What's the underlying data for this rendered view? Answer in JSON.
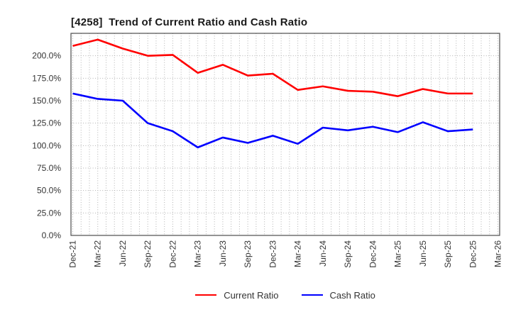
{
  "title": "[4258]  Trend of Current Ratio and Cash Ratio",
  "legend": {
    "items": [
      {
        "label": "Current Ratio",
        "color": "#ff0000"
      },
      {
        "label": "Cash Ratio",
        "color": "#0000ff"
      }
    ]
  },
  "chart_data": {
    "type": "line",
    "title": "[4258]  Trend of Current Ratio and Cash Ratio",
    "categories": [
      "Dec-21",
      "Mar-22",
      "Jun-22",
      "Sep-22",
      "Dec-22",
      "Mar-23",
      "Jun-23",
      "Sep-23",
      "Dec-23",
      "Mar-24",
      "Jun-24",
      "Sep-24",
      "Dec-24",
      "Mar-25",
      "Jun-25",
      "Sep-25",
      "Dec-25",
      "Mar-26"
    ],
    "series": [
      {
        "name": "Current Ratio",
        "color": "#ff0000",
        "values": [
          211,
          218,
          208,
          200,
          201,
          181,
          190,
          178,
          180,
          162,
          166,
          161,
          160,
          155,
          163,
          158,
          158
        ]
      },
      {
        "name": "Cash Ratio",
        "color": "#0000ff",
        "values": [
          158,
          152,
          150,
          125,
          116,
          98,
          109,
          103,
          111,
          102,
          120,
          117,
          121,
          115,
          126,
          116,
          118
        ]
      }
    ],
    "xlabel": "",
    "ylabel": "",
    "ylim": [
      0,
      225
    ],
    "ytick_step": 25,
    "ytick_labels": [
      "0.0%",
      "25.0%",
      "50.0%",
      "75.0%",
      "100.0%",
      "125.0%",
      "150.0%",
      "175.0%",
      "200.0%"
    ],
    "x_minor_per_interval": 3,
    "grid": true,
    "legend_position": "bottom-center",
    "note": "last category Mar-26 has no data"
  }
}
